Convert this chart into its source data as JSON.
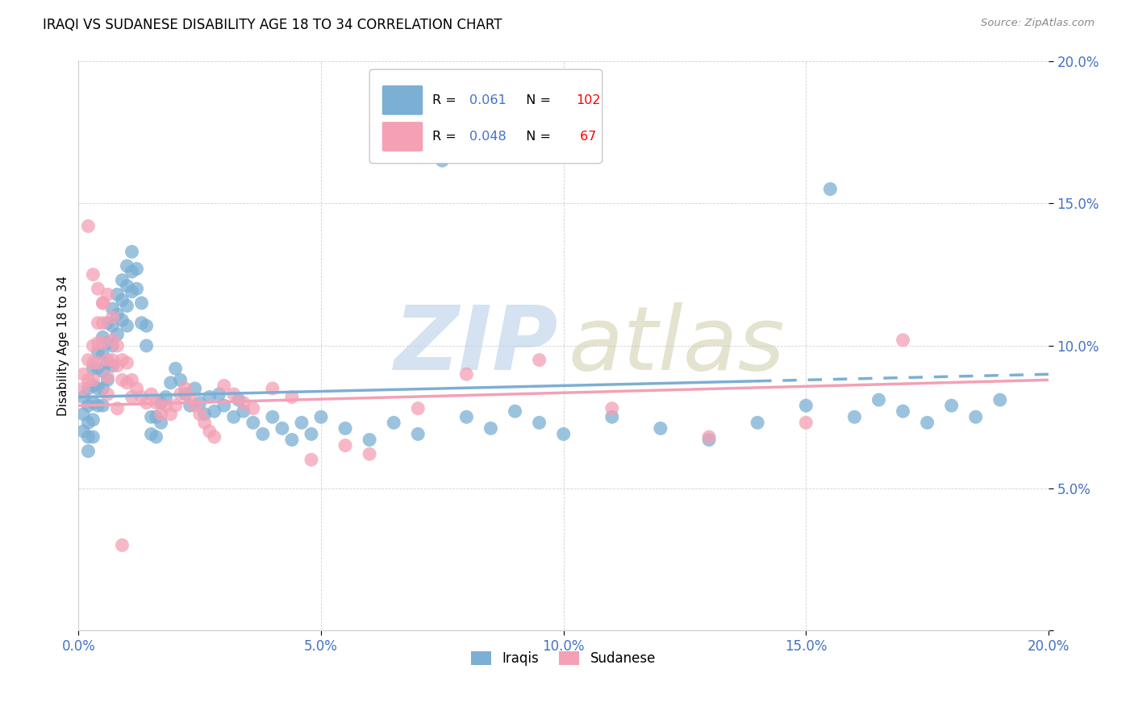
{
  "title": "IRAQI VS SUDANESE DISABILITY AGE 18 TO 34 CORRELATION CHART",
  "source": "Source: ZipAtlas.com",
  "ylabel": "Disability Age 18 to 34",
  "xlim": [
    0.0,
    0.2
  ],
  "ylim": [
    0.0,
    0.2
  ],
  "xticks": [
    0.0,
    0.05,
    0.1,
    0.15,
    0.2
  ],
  "yticks": [
    0.0,
    0.05,
    0.1,
    0.15,
    0.2
  ],
  "xticklabels": [
    "0.0%",
    "5.0%",
    "10.0%",
    "15.0%",
    "20.0%"
  ],
  "yticklabels": [
    "",
    "5.0%",
    "10.0%",
    "15.0%",
    "20.0%"
  ],
  "iraqi_color": "#7BAFD4",
  "sudanese_color": "#F4A0B5",
  "iraqi_R": 0.061,
  "iraqi_N": 102,
  "sudanese_R": 0.048,
  "sudanese_N": 67,
  "tick_color": "#4472C4",
  "legend_R_color": "#4472C4",
  "legend_N_color": "#FF0000",
  "iraqi_scatter_x": [
    0.001,
    0.001,
    0.001,
    0.002,
    0.002,
    0.002,
    0.002,
    0.002,
    0.003,
    0.003,
    0.003,
    0.003,
    0.003,
    0.004,
    0.004,
    0.004,
    0.004,
    0.005,
    0.005,
    0.005,
    0.005,
    0.005,
    0.006,
    0.006,
    0.006,
    0.006,
    0.007,
    0.007,
    0.007,
    0.007,
    0.008,
    0.008,
    0.008,
    0.009,
    0.009,
    0.009,
    0.01,
    0.01,
    0.01,
    0.01,
    0.011,
    0.011,
    0.011,
    0.012,
    0.012,
    0.013,
    0.013,
    0.014,
    0.014,
    0.015,
    0.015,
    0.016,
    0.016,
    0.017,
    0.017,
    0.018,
    0.019,
    0.02,
    0.021,
    0.022,
    0.023,
    0.024,
    0.025,
    0.026,
    0.027,
    0.028,
    0.029,
    0.03,
    0.032,
    0.033,
    0.034,
    0.036,
    0.038,
    0.04,
    0.042,
    0.044,
    0.046,
    0.048,
    0.05,
    0.055,
    0.06,
    0.065,
    0.07,
    0.075,
    0.08,
    0.085,
    0.09,
    0.095,
    0.1,
    0.11,
    0.12,
    0.13,
    0.14,
    0.15,
    0.155,
    0.16,
    0.165,
    0.17,
    0.175,
    0.18,
    0.185,
    0.19
  ],
  "iraqi_scatter_y": [
    0.082,
    0.076,
    0.07,
    0.085,
    0.079,
    0.073,
    0.068,
    0.063,
    0.092,
    0.086,
    0.08,
    0.074,
    0.068,
    0.098,
    0.092,
    0.085,
    0.079,
    0.103,
    0.097,
    0.091,
    0.085,
    0.079,
    0.108,
    0.101,
    0.094,
    0.088,
    0.113,
    0.107,
    0.1,
    0.093,
    0.118,
    0.111,
    0.104,
    0.123,
    0.116,
    0.109,
    0.128,
    0.121,
    0.114,
    0.107,
    0.133,
    0.126,
    0.119,
    0.127,
    0.12,
    0.115,
    0.108,
    0.107,
    0.1,
    0.075,
    0.069,
    0.075,
    0.068,
    0.08,
    0.073,
    0.082,
    0.087,
    0.092,
    0.088,
    0.083,
    0.079,
    0.085,
    0.08,
    0.076,
    0.082,
    0.077,
    0.083,
    0.079,
    0.075,
    0.081,
    0.077,
    0.073,
    0.069,
    0.075,
    0.071,
    0.067,
    0.073,
    0.069,
    0.075,
    0.071,
    0.067,
    0.073,
    0.069,
    0.165,
    0.075,
    0.071,
    0.077,
    0.073,
    0.069,
    0.075,
    0.071,
    0.067,
    0.073,
    0.079,
    0.155,
    0.075,
    0.081,
    0.077,
    0.073,
    0.079,
    0.075,
    0.081
  ],
  "sudanese_scatter_x": [
    0.001,
    0.001,
    0.002,
    0.002,
    0.002,
    0.003,
    0.003,
    0.003,
    0.004,
    0.004,
    0.004,
    0.005,
    0.005,
    0.005,
    0.006,
    0.006,
    0.006,
    0.007,
    0.007,
    0.008,
    0.008,
    0.009,
    0.009,
    0.01,
    0.01,
    0.011,
    0.011,
    0.012,
    0.013,
    0.014,
    0.015,
    0.016,
    0.017,
    0.018,
    0.019,
    0.02,
    0.021,
    0.022,
    0.023,
    0.024,
    0.025,
    0.026,
    0.027,
    0.028,
    0.03,
    0.032,
    0.034,
    0.036,
    0.04,
    0.044,
    0.048,
    0.055,
    0.06,
    0.07,
    0.08,
    0.095,
    0.11,
    0.13,
    0.15,
    0.17,
    0.003,
    0.004,
    0.005,
    0.006,
    0.007,
    0.008,
    0.009
  ],
  "sudanese_scatter_y": [
    0.09,
    0.085,
    0.142,
    0.095,
    0.088,
    0.1,
    0.094,
    0.088,
    0.108,
    0.101,
    0.094,
    0.115,
    0.108,
    0.101,
    0.095,
    0.089,
    0.083,
    0.102,
    0.095,
    0.1,
    0.093,
    0.095,
    0.088,
    0.094,
    0.087,
    0.088,
    0.082,
    0.085,
    0.082,
    0.08,
    0.083,
    0.08,
    0.076,
    0.079,
    0.076,
    0.079,
    0.083,
    0.085,
    0.082,
    0.079,
    0.076,
    0.073,
    0.07,
    0.068,
    0.086,
    0.083,
    0.08,
    0.078,
    0.085,
    0.082,
    0.06,
    0.065,
    0.062,
    0.078,
    0.09,
    0.095,
    0.078,
    0.068,
    0.073,
    0.102,
    0.125,
    0.12,
    0.115,
    0.118,
    0.11,
    0.078,
    0.03
  ]
}
